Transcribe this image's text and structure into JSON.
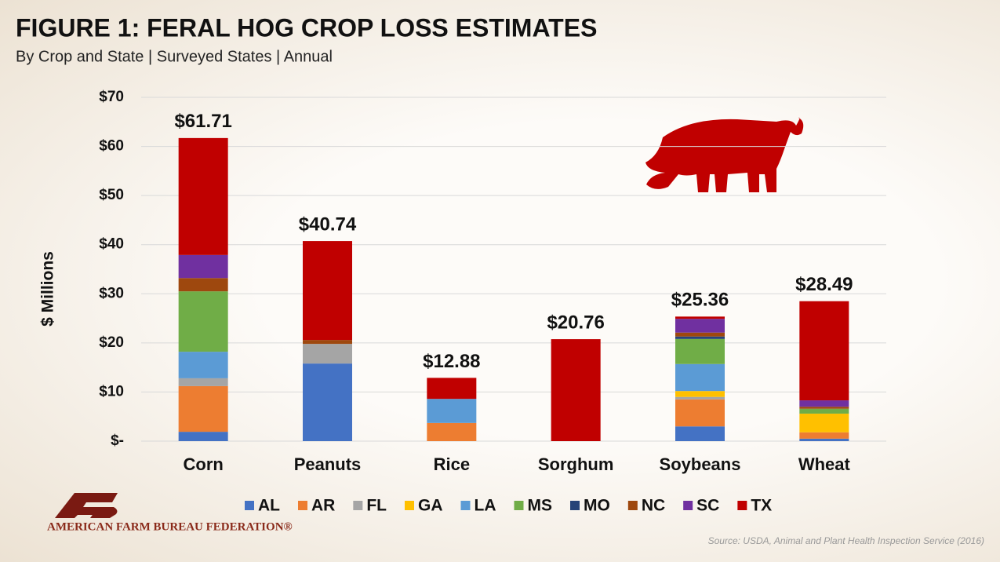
{
  "chart_data": {
    "type": "stacked_bar",
    "title": "FIGURE 1: FERAL HOG CROP LOSS ESTIMATES",
    "subtitle": "By Crop and State | Surveyed States | Annual",
    "y_label": "$ Millions",
    "categories": [
      "Corn",
      "Peanuts",
      "Rice",
      "Sorghum",
      "Soybeans",
      "Wheat"
    ],
    "series": [
      {
        "name": "AL",
        "color": "#4472c4",
        "values": [
          1.9,
          15.8,
          0,
          0,
          3.0,
          0.5
        ]
      },
      {
        "name": "AR",
        "color": "#ed7d31",
        "values": [
          9.3,
          0,
          3.7,
          0,
          5.5,
          1.3
        ]
      },
      {
        "name": "FL",
        "color": "#a5a5a5",
        "values": [
          1.6,
          4.0,
          0,
          0,
          0.5,
          0
        ]
      },
      {
        "name": "GA",
        "color": "#ffc000",
        "values": [
          0,
          0,
          0,
          0,
          1.2,
          3.8
        ]
      },
      {
        "name": "LA",
        "color": "#5b9bd5",
        "values": [
          5.4,
          0,
          4.9,
          0,
          5.5,
          0
        ]
      },
      {
        "name": "MS",
        "color": "#70ad47",
        "values": [
          12.3,
          0,
          0,
          0,
          5.1,
          1.0
        ]
      },
      {
        "name": "MO",
        "color": "#264478",
        "values": [
          0,
          0,
          0,
          0,
          0.5,
          0
        ]
      },
      {
        "name": "NC",
        "color": "#9e480e",
        "values": [
          2.7,
          0.8,
          0,
          0,
          0.8,
          0.4
        ]
      },
      {
        "name": "SC",
        "color": "#7030a0",
        "values": [
          4.7,
          0,
          0,
          0,
          2.8,
          1.3
        ]
      },
      {
        "name": "TX",
        "color": "#c00000",
        "values": [
          23.81,
          20.14,
          4.28,
          20.76,
          0.46,
          20.19
        ]
      }
    ],
    "totals": [
      61.71,
      40.74,
      12.88,
      20.76,
      25.36,
      28.49
    ],
    "total_labels": [
      "$61.71",
      "$40.74",
      "$12.88",
      "$20.76",
      "$25.36",
      "$28.49"
    ],
    "ylim": [
      0,
      70
    ],
    "yticks": [
      {
        "value": 0,
        "label": "$-"
      },
      {
        "value": 10,
        "label": "$10"
      },
      {
        "value": 20,
        "label": "$20"
      },
      {
        "value": 30,
        "label": "$30"
      },
      {
        "value": 40,
        "label": "$40"
      },
      {
        "value": 50,
        "label": "$50"
      },
      {
        "value": 60,
        "label": "$60"
      },
      {
        "value": 70,
        "label": "$70"
      }
    ],
    "grid": true,
    "legend": "bottom"
  },
  "logo_text": "AMERICAN FARM BUREAU FEDERATION®",
  "source": "Source: USDA, Animal and Plant Health Inspection Service (2016)"
}
